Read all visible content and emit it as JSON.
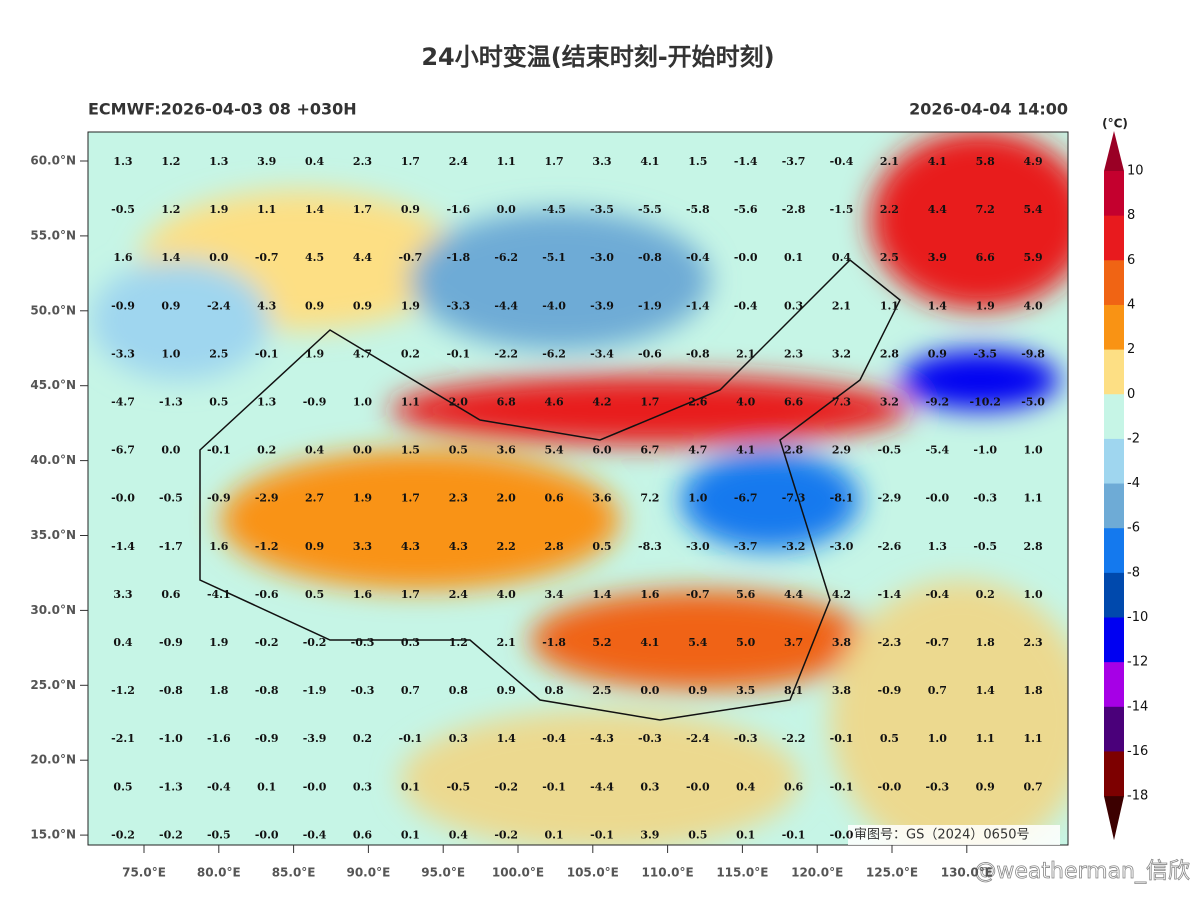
{
  "title": "24小时变温(结束时刻-开始时刻)",
  "model_run": "ECMWF:2026-04-03 08 +030H",
  "valid_time": "2026-04-04 14:00",
  "approval": "审图号：GS（2024）0650号",
  "watermark": "@weatherman_信欣",
  "lat_labels": [
    "60.0°N",
    "55.0°N",
    "50.0°N",
    "45.0°N",
    "40.0°N",
    "35.0°N",
    "30.0°N",
    "25.0°N",
    "20.0°N",
    "15.0°N"
  ],
  "lon_labels": [
    "75.0°E",
    "80.0°E",
    "85.0°E",
    "90.0°E",
    "95.0°E",
    "100.0°E",
    "105.0°E",
    "110.0°E",
    "115.0°E",
    "120.0°E",
    "125.0°E",
    "130.0°E"
  ],
  "colorbar": {
    "unit": "(°C)",
    "labels": [
      "10",
      "8",
      "6",
      "4",
      "2",
      "0",
      "-2",
      "-4",
      "-6",
      "-8",
      "-10",
      "-12",
      "-14",
      "-16",
      "-18"
    ],
    "colors": [
      "#9a0025",
      "#c4002e",
      "#e81a1e",
      "#f06414",
      "#f99314",
      "#fddf84",
      "#c6f5e6",
      "#9fd6ef",
      "#6eabd6",
      "#1479ee",
      "#0049ad",
      "#0000f2",
      "#a600e6",
      "#4a007a",
      "#7d0000",
      "#3c0000"
    ]
  },
  "grid": [
    [
      "1.3",
      "1.2",
      "1.3",
      "3.9",
      "0.4",
      "2.3",
      "1.7",
      "2.4",
      "1.1",
      "1.7",
      "3.3",
      "4.1",
      "1.5",
      "-1.4",
      "-3.7",
      "-0.4",
      "2.1",
      "4.1",
      "5.8",
      "4.9"
    ],
    [
      "-0.5",
      "1.2",
      "1.9",
      "1.1",
      "1.4",
      "1.7",
      "0.9",
      "-1.6",
      "0.0",
      "-4.5",
      "-3.5",
      "-5.5",
      "-5.8",
      "-5.6",
      "-2.8",
      "-1.5",
      "2.2",
      "4.4",
      "7.2",
      "5.4"
    ],
    [
      "1.6",
      "1.4",
      "0.0",
      "-0.7",
      "4.5",
      "4.4",
      "-0.7",
      "-1.8",
      "-6.2",
      "-5.1",
      "-3.0",
      "-0.8",
      "-0.4",
      "-0.0",
      "0.1",
      "0.4",
      "2.5",
      "3.9",
      "6.6",
      "5.9"
    ],
    [
      "-0.9",
      "0.9",
      "-2.4",
      "4.3",
      "0.9",
      "0.9",
      "1.9",
      "-3.3",
      "-4.4",
      "-4.0",
      "-3.9",
      "-1.9",
      "-1.4",
      "-0.4",
      "0.3",
      "2.1",
      "1.1",
      "1.4",
      "1.9",
      "4.0"
    ],
    [
      "-3.3",
      "1.0",
      "2.5",
      "-0.1",
      "1.9",
      "4.7",
      "0.2",
      "-0.1",
      "-2.2",
      "-6.2",
      "-3.4",
      "-0.6",
      "-0.8",
      "2.1",
      "2.3",
      "3.2",
      "2.8",
      "0.9",
      "-3.5",
      "-9.8"
    ],
    [
      "-4.7",
      "-1.3",
      "0.5",
      "1.3",
      "-0.9",
      "1.0",
      "1.1",
      "2.0",
      "6.8",
      "4.6",
      "4.2",
      "1.7",
      "2.6",
      "4.0",
      "6.6",
      "7.3",
      "3.2",
      "-9.2",
      "-10.2",
      "-5.0"
    ],
    [
      "-6.7",
      "0.0",
      "-0.1",
      "0.2",
      "0.4",
      "0.0",
      "1.5",
      "0.5",
      "3.6",
      "5.4",
      "6.0",
      "6.7",
      "4.7",
      "4.1",
      "2.8",
      "2.9",
      "-0.5",
      "-5.4",
      "-1.0",
      "1.0"
    ],
    [
      "-0.0",
      "-0.5",
      "-0.9",
      "-2.9",
      "2.7",
      "1.9",
      "1.7",
      "2.3",
      "2.0",
      "0.6",
      "3.6",
      "7.2",
      "1.0",
      "-6.7",
      "-7.3",
      "-8.1",
      "-2.9",
      "-0.0",
      "-0.3",
      "1.1"
    ],
    [
      "-1.4",
      "-1.7",
      "1.6",
      "-1.2",
      "0.9",
      "3.3",
      "4.3",
      "4.3",
      "2.2",
      "2.8",
      "0.5",
      "-8.3",
      "-3.0",
      "-3.7",
      "-3.2",
      "-3.0",
      "-2.6",
      "1.3",
      "-0.5",
      "2.8"
    ],
    [
      "3.3",
      "0.6",
      "-4.1",
      "-0.6",
      "0.5",
      "1.6",
      "1.7",
      "2.4",
      "4.0",
      "3.4",
      "1.4",
      "1.6",
      "-0.7",
      "5.6",
      "4.4",
      "4.2",
      "-1.4",
      "-0.4",
      "0.2",
      "1.0"
    ],
    [
      "0.4",
      "-0.9",
      "1.9",
      "-0.2",
      "-0.2",
      "-0.3",
      "0.3",
      "1.2",
      "2.1",
      "-1.8",
      "5.2",
      "4.1",
      "5.4",
      "5.0",
      "3.7",
      "3.8",
      "-2.3",
      "-0.7",
      "1.8",
      "2.3"
    ],
    [
      "-1.2",
      "-0.8",
      "1.8",
      "-0.8",
      "-1.9",
      "-0.3",
      "0.7",
      "0.8",
      "0.9",
      "0.8",
      "2.5",
      "0.0",
      "0.9",
      "3.5",
      "8.1",
      "3.8",
      "-0.9",
      "0.7",
      "1.4",
      "1.8"
    ],
    [
      "-2.1",
      "-1.0",
      "-1.6",
      "-0.9",
      "-3.9",
      "0.2",
      "-0.1",
      "0.3",
      "1.4",
      "-0.4",
      "-4.3",
      "-0.3",
      "-2.4",
      "-0.3",
      "-2.2",
      "-0.1",
      "0.5",
      "1.0",
      "1.1",
      "1.1"
    ],
    [
      "0.5",
      "-1.3",
      "-0.4",
      "0.1",
      "-0.0",
      "0.3",
      "0.1",
      "-0.5",
      "-0.2",
      "-0.1",
      "-4.4",
      "0.3",
      "-0.0",
      "0.4",
      "0.6",
      "-0.1",
      "-0.0",
      "-0.3",
      "0.9",
      "0.7"
    ],
    [
      "-0.2",
      "-0.2",
      "-0.5",
      "-0.0",
      "-0.4",
      "0.6",
      "0.1",
      "0.4",
      "-0.2",
      "0.1",
      "-0.1",
      "3.9",
      "0.5",
      "0.1",
      "-0.1",
      "-0.0"
    ]
  ]
}
